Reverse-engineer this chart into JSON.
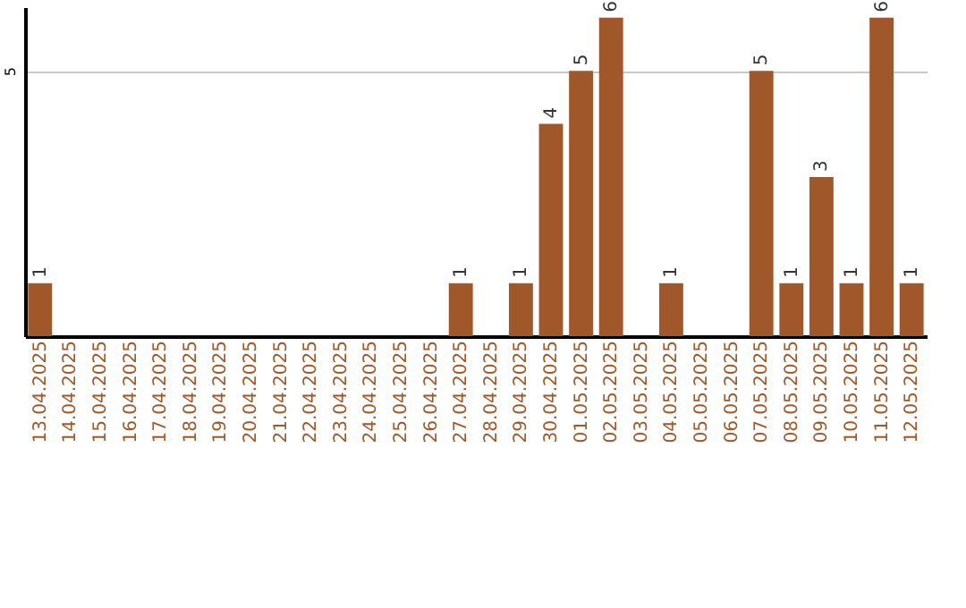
{
  "chart_data": {
    "type": "bar",
    "categories": [
      "13.04.2025",
      "14.04.2025",
      "15.04.2025",
      "16.04.2025",
      "17.04.2025",
      "18.04.2025",
      "19.04.2025",
      "20.04.2025",
      "21.04.2025",
      "22.04.2025",
      "23.04.2025",
      "24.04.2025",
      "25.04.2025",
      "26.04.2025",
      "27.04.2025",
      "28.04.2025",
      "29.04.2025",
      "30.04.2025",
      "01.05.2025",
      "02.05.2025",
      "03.05.2025",
      "04.05.2025",
      "05.05.2025",
      "06.05.2025",
      "07.05.2025",
      "08.05.2025",
      "09.05.2025",
      "10.05.2025",
      "11.05.2025",
      "12.05.2025"
    ],
    "values": [
      1,
      0,
      0,
      0,
      0,
      0,
      0,
      0,
      0,
      0,
      0,
      0,
      0,
      0,
      1,
      0,
      1,
      4,
      5,
      6,
      0,
      1,
      0,
      0,
      5,
      1,
      3,
      1,
      6,
      1
    ],
    "value_labels": [
      "1",
      null,
      null,
      null,
      null,
      null,
      null,
      null,
      null,
      null,
      null,
      null,
      null,
      null,
      "1",
      null,
      "1",
      "4",
      "5",
      "6",
      null,
      "1",
      null,
      null,
      "5",
      "1",
      "3",
      "1",
      "6",
      "1"
    ],
    "color": "#a0582a",
    "ylim": [
      0,
      6.2
    ],
    "yticks": [
      5
    ],
    "grid": "y"
  }
}
